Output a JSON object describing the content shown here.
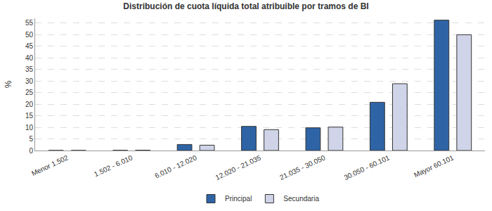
{
  "chart_data": {
    "type": "bar",
    "title": "Distribución de cuota líquida total atribuible por tramos de BI",
    "y_label": "%",
    "categories": [
      "Menor 1.502",
      "1.502 - 6.010",
      "6.010 - 12.020",
      "12.020 - 21.035",
      "21.035 - 30.050",
      "30.050 - 60.101",
      "Mayor 60.101"
    ],
    "series": [
      {
        "name": "Principal",
        "color": "#2e64a6",
        "values": [
          0.05,
          0.1,
          2.6,
          10.4,
          9.8,
          20.8,
          56.2
        ]
      },
      {
        "name": "Secundaria",
        "color": "#d0d4e8",
        "values": [
          0.05,
          0.15,
          2.3,
          9.0,
          10.1,
          28.8,
          49.9
        ]
      }
    ],
    "ylim": [
      0,
      57
    ],
    "yticks": [
      0,
      5,
      10,
      15,
      20,
      25,
      30,
      35,
      40,
      45,
      50,
      55
    ],
    "grid": true,
    "legend": "bottom"
  }
}
